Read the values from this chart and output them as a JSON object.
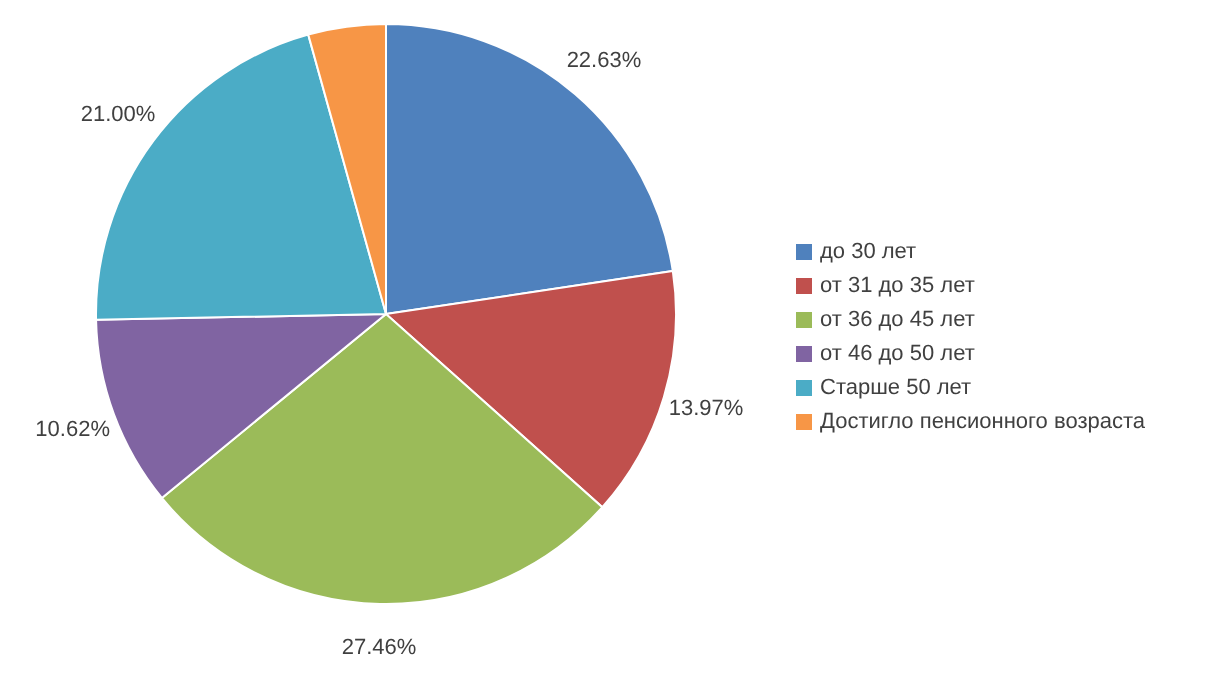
{
  "chart_data": {
    "type": "pie",
    "categories": [
      "до 30 лет",
      "от 31 до 35 лет",
      "от 36 до 45 лет",
      "от 46 до 50 лет",
      "Старше 50 лет",
      "Достигло пенсионного возраста"
    ],
    "values": [
      22.63,
      13.97,
      27.46,
      10.62,
      21.0,
      4.32
    ],
    "value_labels": [
      "22.63%",
      "13.97%",
      "27.46%",
      "10.62%",
      "21.00%",
      null
    ],
    "colors": [
      "#4f81bd",
      "#c0504d",
      "#9bbb59",
      "#8064a2",
      "#4bacc6",
      "#f79646"
    ],
    "legend": "right"
  }
}
